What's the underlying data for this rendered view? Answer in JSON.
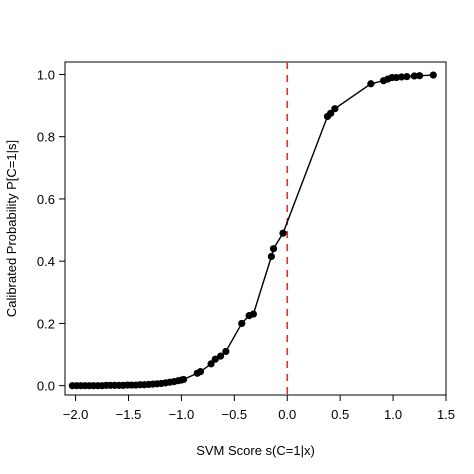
{
  "chart_data": {
    "type": "line",
    "title": "",
    "xlabel": "SVM Score s(C=1|x)",
    "ylabel": "Calibrated Probability P[C=1|s]",
    "xlim": [
      -2.1,
      1.5
    ],
    "ylim": [
      -0.03,
      1.04
    ],
    "xticks": [
      -2.0,
      -1.5,
      -1.0,
      -0.5,
      0.0,
      0.5,
      1.0,
      1.5
    ],
    "xtick_labels": [
      "−2.0",
      "−1.5",
      "−1.0",
      "−0.5",
      "0.0",
      "0.5",
      "1.0",
      "1.5"
    ],
    "yticks": [
      0.0,
      0.2,
      0.4,
      0.6,
      0.8,
      1.0
    ],
    "ytick_labels": [
      "0.0",
      "0.2",
      "0.4",
      "0.6",
      "0.8",
      "1.0"
    ],
    "grid": false,
    "reference_line": {
      "x": 0.0,
      "style": "dashed",
      "color": "#e0302b"
    },
    "series_color": "#000000",
    "series": [
      {
        "x": [
          -2.03,
          -1.99,
          -1.95,
          -1.91,
          -1.87,
          -1.83,
          -1.79,
          -1.75,
          -1.71,
          -1.67,
          -1.63,
          -1.59,
          -1.55,
          -1.51,
          -1.47,
          -1.43,
          -1.39,
          -1.35,
          -1.31,
          -1.27,
          -1.23,
          -1.19,
          -1.15,
          -1.11,
          -1.07,
          -1.03,
          -1.0,
          -0.98,
          -0.85,
          -0.82,
          -0.72,
          -0.68,
          -0.63,
          -0.58,
          -0.43,
          -0.36,
          -0.32,
          -0.15,
          -0.13,
          -0.04,
          0.38,
          0.41,
          0.45,
          0.79,
          0.91,
          0.95,
          0.99,
          1.03,
          1.08,
          1.13,
          1.2,
          1.25,
          1.38
        ],
        "y": [
          0.0,
          0.0,
          0.0,
          0.0,
          0.0,
          0.0,
          0.0,
          0.0,
          0.001,
          0.001,
          0.001,
          0.001,
          0.001,
          0.002,
          0.002,
          0.002,
          0.003,
          0.003,
          0.004,
          0.005,
          0.006,
          0.007,
          0.009,
          0.011,
          0.013,
          0.016,
          0.018,
          0.02,
          0.04,
          0.045,
          0.07,
          0.085,
          0.095,
          0.11,
          0.2,
          0.225,
          0.23,
          0.415,
          0.44,
          0.49,
          0.865,
          0.875,
          0.89,
          0.97,
          0.98,
          0.985,
          0.99,
          0.99,
          0.992,
          0.993,
          0.995,
          0.996,
          0.998
        ]
      }
    ]
  }
}
